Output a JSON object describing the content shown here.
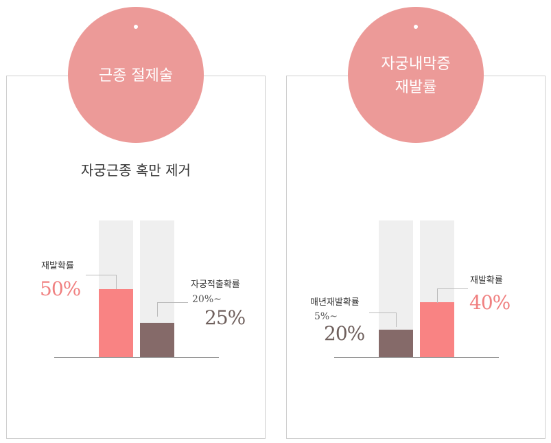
{
  "panels": [
    {
      "badge": "근종 절제술",
      "subtitle": "자궁근종 혹만 제거"
    },
    {
      "badge": "자궁내막증\n재발률",
      "subtitle": ""
    }
  ],
  "colors": {
    "pink": "#f98383",
    "brown": "#856a69",
    "track": "#efefef",
    "badge": "#ec9a98"
  },
  "chart_data": [
    {
      "type": "bar",
      "categories": [
        "재발확률",
        "자궁적출확률"
      ],
      "values": [
        50,
        25
      ],
      "range_label": [
        "",
        "20%~"
      ],
      "value_labels": [
        "50%",
        "25%"
      ],
      "ylim": [
        0,
        100
      ]
    },
    {
      "type": "bar",
      "categories": [
        "매년재발확률",
        "재발확률"
      ],
      "values": [
        20,
        40
      ],
      "range_label": [
        "5%~",
        ""
      ],
      "value_labels": [
        "20%",
        "40%"
      ],
      "ylim": [
        0,
        100
      ]
    }
  ]
}
